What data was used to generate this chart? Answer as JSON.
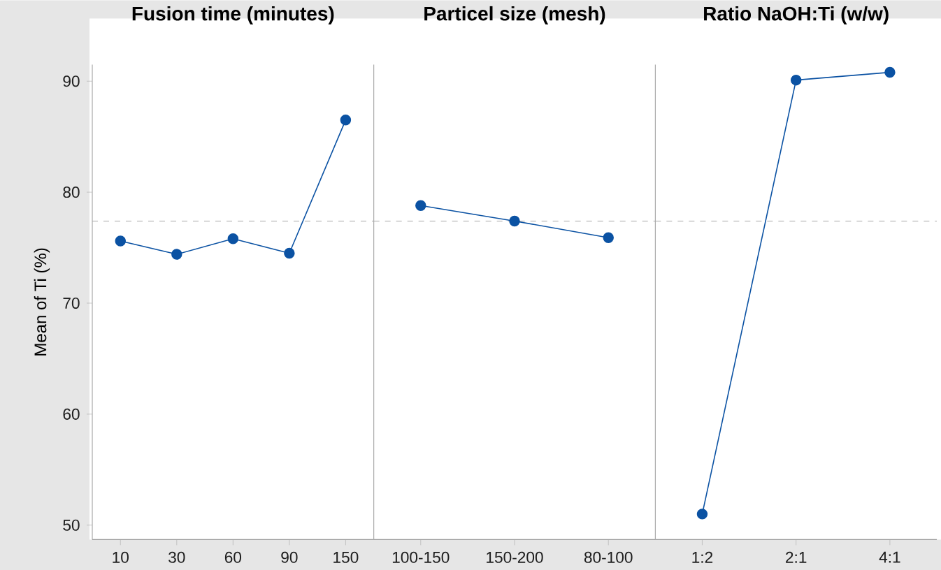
{
  "chart_data": [
    {
      "type": "line",
      "title": "**Fusion time (minutes)**",
      "ylabel": "Mean of Ti (%)",
      "categories": [
        "10",
        "30",
        "60",
        "90",
        "150"
      ],
      "values": [
        75.6,
        74.4,
        75.8,
        74.5,
        86.5
      ],
      "color": "#0b52a3",
      "marker": "circle",
      "ylim": [
        48.7,
        91.5
      ],
      "yticks": [
        50,
        60,
        70,
        80,
        90
      ],
      "grid": false,
      "ref_lines": [
        {
          "axis": "y",
          "value": 77.4,
          "color": "#a6a6a6",
          "line_style": "dashed"
        }
      ]
    },
    {
      "type": "line",
      "title": "**Particel size (mesh)**",
      "categories": [
        "100-150",
        "150-200",
        "80-100"
      ],
      "values": [
        78.8,
        77.4,
        75.9
      ],
      "color": "#0b52a3",
      "marker": "circle",
      "ylim": [
        48.7,
        91.5
      ],
      "tick_labels": "x",
      "grid": false,
      "ref_lines": [
        {
          "axis": "y",
          "value": 77.4,
          "color": "#a6a6a6",
          "line_style": "dashed"
        }
      ]
    },
    {
      "type": "line",
      "title": "**Ratio NaOH:Ti (w/w)**",
      "categories": [
        "1:2",
        "2:1",
        "4:1"
      ],
      "values": [
        51.0,
        90.1,
        90.8
      ],
      "color": "#0b52a3",
      "marker": "circle",
      "ylim": [
        48.7,
        91.5
      ],
      "tick_labels": "x",
      "grid": false,
      "ref_lines": [
        {
          "axis": "y",
          "value": 77.4,
          "color": "#a6a6a6",
          "line_style": "dashed"
        }
      ]
    }
  ]
}
